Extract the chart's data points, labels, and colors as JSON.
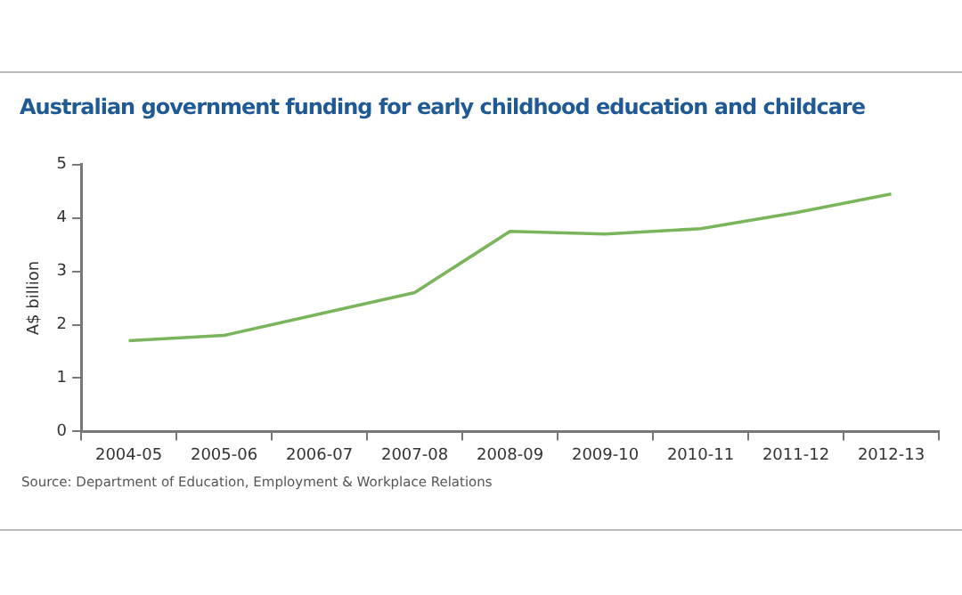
{
  "chart_data": {
    "type": "line",
    "title": "Australian government funding for early childhood education and childcare",
    "ylabel": "A$ billion",
    "categories": [
      "2004-05",
      "2005-06",
      "2006-07",
      "2007-08",
      "2008-09",
      "2009-10",
      "2010-11",
      "2011-12",
      "2012-13"
    ],
    "series": [
      {
        "color": "#7ab55c",
        "values": [
          1.7,
          1.8,
          2.2,
          2.6,
          3.75,
          3.7,
          3.8,
          4.1,
          4.45
        ]
      }
    ],
    "ylim": [
      0,
      5
    ],
    "yticks": [
      0,
      1,
      2,
      3,
      4,
      5
    ],
    "grid": false,
    "legend": false,
    "marker": "none",
    "line_style": "solid",
    "annotations": [
      "Source: Department of Education, Employment & Workplace Relations"
    ]
  }
}
